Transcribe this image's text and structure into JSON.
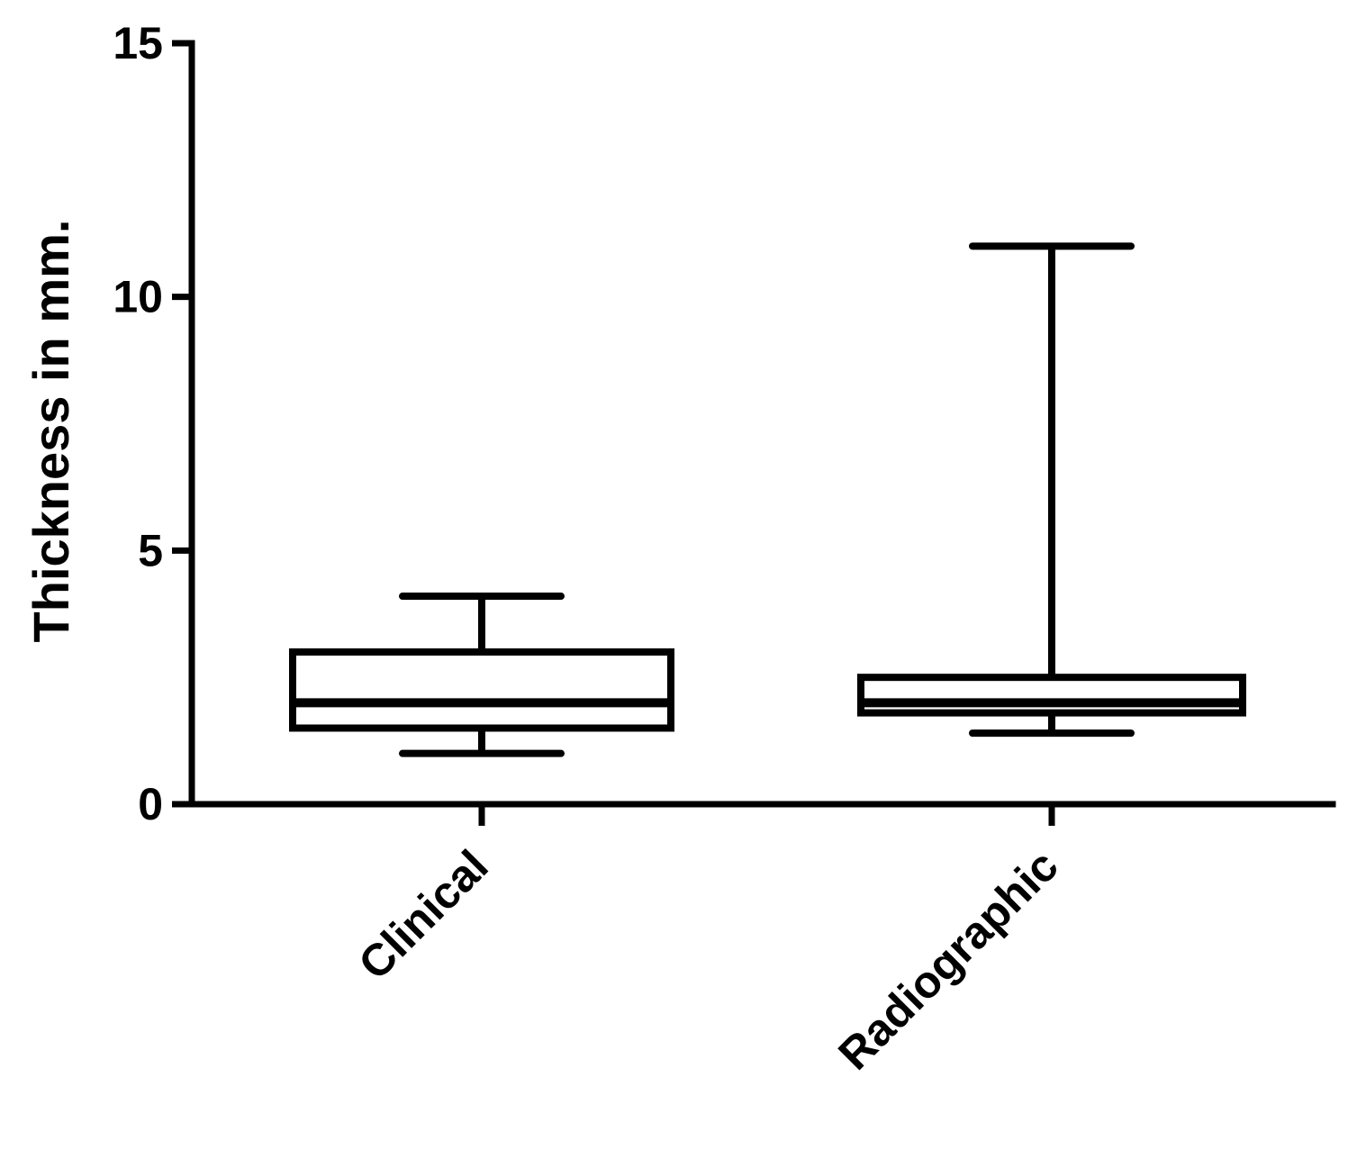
{
  "chart_data": {
    "type": "boxplot",
    "title": "",
    "xlabel": "",
    "ylabel": "Thickness in mm.",
    "ylim": [
      0,
      15
    ],
    "yticks": [
      0,
      5,
      10,
      15
    ],
    "ytick_labels": [
      "0",
      "5",
      "10",
      "15"
    ],
    "grid": false,
    "legend": "none",
    "categories": [
      "Clinical",
      "Radiographic"
    ],
    "boxes": [
      {
        "category": "Clinical",
        "min": 1.0,
        "q1": 1.5,
        "median": 2.0,
        "q3": 3.0,
        "max": 4.1
      },
      {
        "category": "Radiographic",
        "min": 1.4,
        "q1": 1.8,
        "median": 2.0,
        "q3": 2.5,
        "max": 11.0
      }
    ],
    "colors": {
      "stroke": "#000000",
      "fill": "#ffffff"
    }
  }
}
